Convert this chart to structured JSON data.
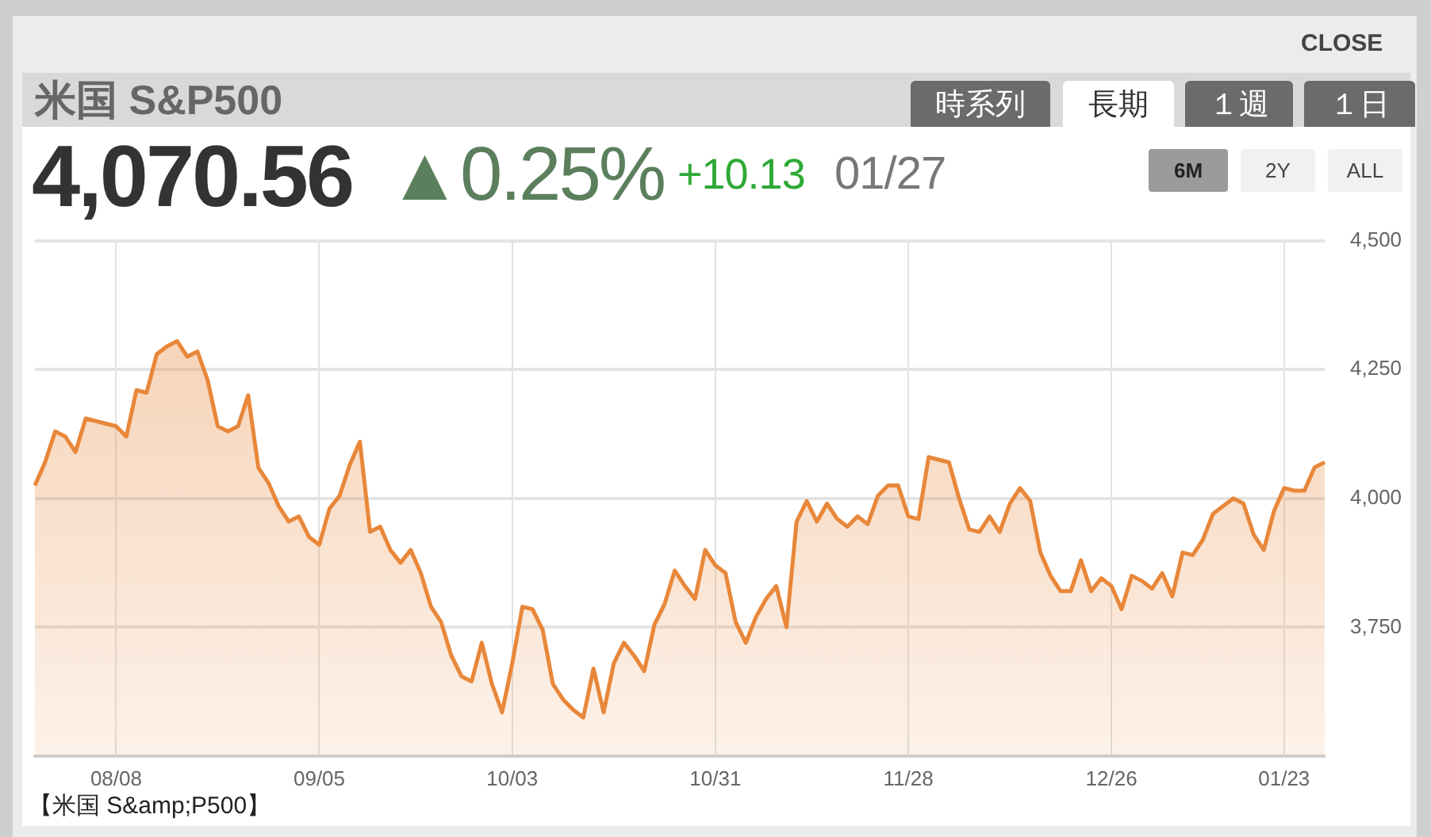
{
  "chart_data": {
    "type": "area",
    "title": "米国 S&P500",
    "annotations": [
      "CLOSE",
      "時系列",
      "長期",
      "１週",
      "１日",
      "4,070.56",
      "▲0.25%",
      "+10.13",
      "01/27",
      "6M",
      "2Y",
      "ALL",
      "【米国 S&amp;P500】"
    ],
    "categories": [
      null,
      null,
      null,
      null,
      null,
      null,
      null,
      null,
      "08/08",
      null,
      null,
      null,
      null,
      null,
      null,
      null,
      null,
      null,
      null,
      null,
      null,
      null,
      null,
      null,
      null,
      null,
      null,
      null,
      "09/05",
      null,
      null,
      null,
      null,
      null,
      null,
      null,
      null,
      null,
      null,
      null,
      null,
      null,
      null,
      null,
      null,
      null,
      null,
      "10/03",
      null,
      null,
      null,
      null,
      null,
      null,
      null,
      null,
      null,
      null,
      null,
      null,
      null,
      null,
      null,
      null,
      null,
      null,
      null,
      "10/31",
      null,
      null,
      null,
      null,
      null,
      null,
      null,
      null,
      null,
      null,
      null,
      null,
      null,
      null,
      null,
      null,
      null,
      null,
      "11/28",
      null,
      null,
      null,
      null,
      null,
      null,
      null,
      null,
      null,
      null,
      null,
      null,
      null,
      null,
      null,
      null,
      null,
      null,
      null,
      "12/26",
      null,
      null,
      null,
      null,
      null,
      null,
      null,
      null,
      null,
      null,
      null,
      null,
      null,
      null,
      null,
      null,
      "01/23",
      null,
      null,
      null,
      null
    ],
    "values": [
      4025,
      4070,
      4130,
      4120,
      4090,
      4155,
      4150,
      4145,
      4140,
      4120,
      4210,
      4205,
      4280,
      4295,
      4305,
      4275,
      4285,
      4230,
      4140,
      4130,
      4140,
      4200,
      4060,
      4030,
      3985,
      3955,
      3965,
      3925,
      3910,
      3980,
      4005,
      4065,
      4110,
      3935,
      3945,
      3900,
      3875,
      3900,
      3855,
      3790,
      3760,
      3695,
      3655,
      3645,
      3720,
      3640,
      3585,
      3680,
      3790,
      3785,
      3745,
      3640,
      3610,
      3590,
      3575,
      3670,
      3585,
      3680,
      3720,
      3695,
      3665,
      3755,
      3795,
      3860,
      3830,
      3805,
      3900,
      3870,
      3855,
      3760,
      3720,
      3770,
      3805,
      3830,
      3750,
      3955,
      3995,
      3955,
      3990,
      3960,
      3945,
      3965,
      3950,
      4005,
      4025,
      4025,
      3965,
      3960,
      4080,
      4075,
      4070,
      4000,
      3940,
      3935,
      3965,
      3935,
      3990,
      4020,
      3995,
      3895,
      3850,
      3820,
      3820,
      3880,
      3820,
      3845,
      3830,
      3785,
      3850,
      3840,
      3825,
      3855,
      3810,
      3895,
      3890,
      3920,
      3970,
      3985,
      4000,
      3990,
      3930,
      3900,
      3975,
      4020,
      4015,
      4015,
      4060,
      4070
    ],
    "color": "#e8873a",
    "ylim": [
      3500,
      4500
    ],
    "yticks": [
      {
        "value": 3750,
        "label": "3,750"
      },
      {
        "value": 4000,
        "label": "4,000"
      },
      {
        "value": 4250,
        "label": "4,250"
      },
      {
        "value": 4500,
        "label": "4,500"
      }
    ],
    "grid": true,
    "marker": "none"
  }
}
